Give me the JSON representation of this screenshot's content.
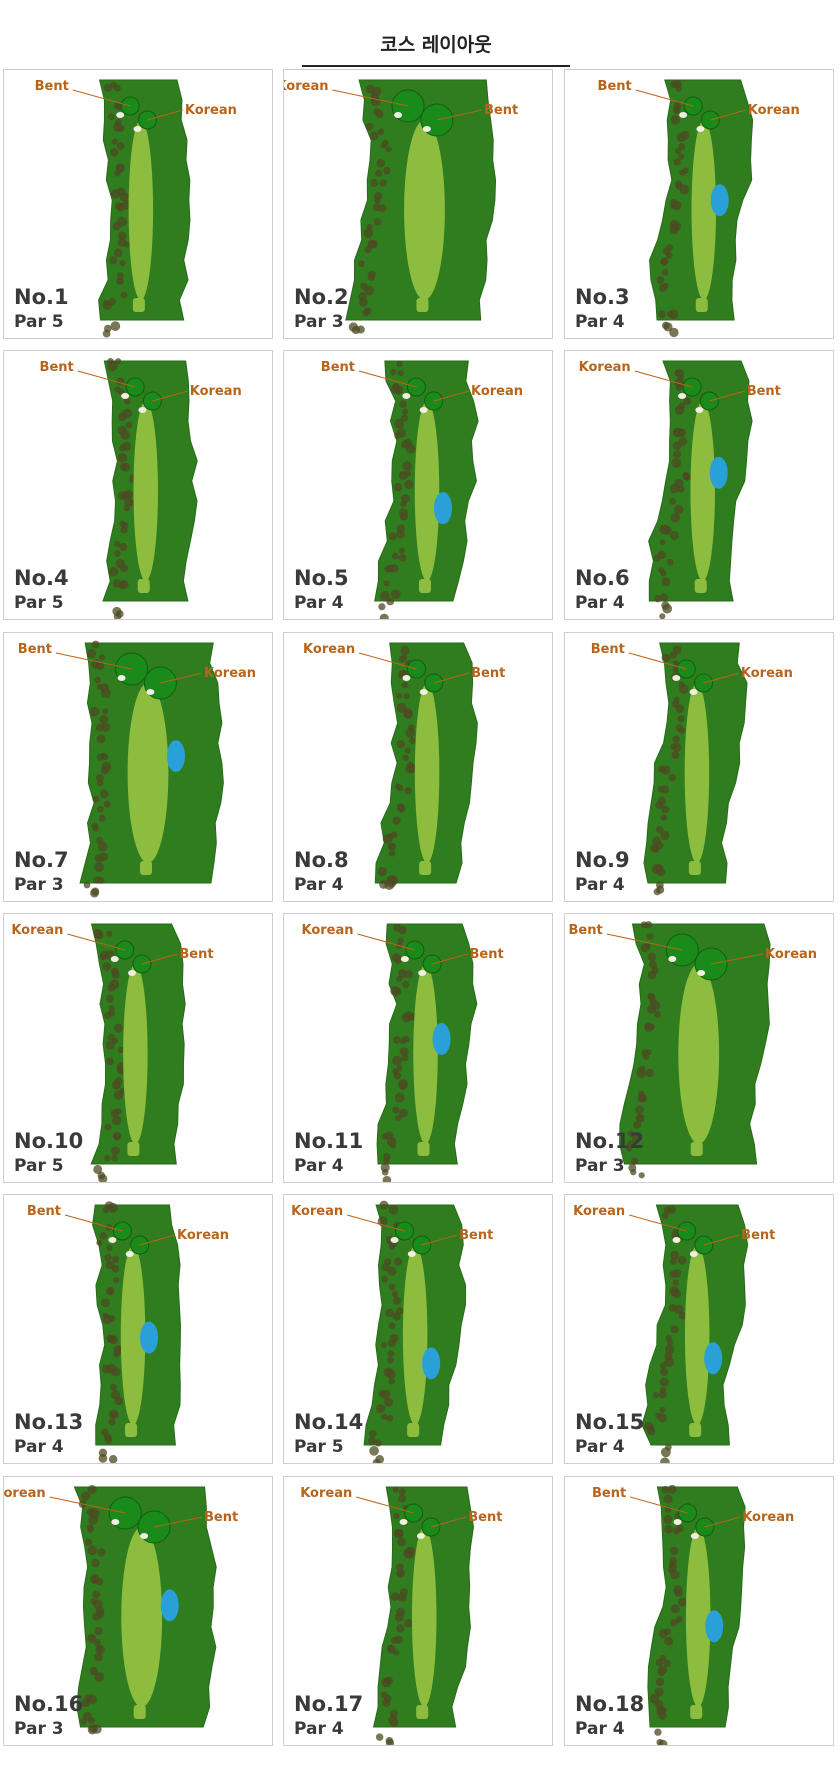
{
  "header": {
    "title": "코스 레이아웃"
  },
  "holes": [
    {
      "number": "No.1",
      "par": "Par 5",
      "left_label": "Bent",
      "right_label": "Korean"
    },
    {
      "number": "No.2",
      "par": "Par 3",
      "left_label": "Korean",
      "right_label": "Bent"
    },
    {
      "number": "No.3",
      "par": "Par 4",
      "left_label": "Bent",
      "right_label": "Korean"
    },
    {
      "number": "No.4",
      "par": "Par 5",
      "left_label": "Bent",
      "right_label": "Korean"
    },
    {
      "number": "No.5",
      "par": "Par 4",
      "left_label": "Bent",
      "right_label": "Korean"
    },
    {
      "number": "No.6",
      "par": "Par 4",
      "left_label": "Korean",
      "right_label": "Bent"
    },
    {
      "number": "No.7",
      "par": "Par 3",
      "left_label": "Bent",
      "right_label": "Korean"
    },
    {
      "number": "No.8",
      "par": "Par 4",
      "left_label": "Korean",
      "right_label": "Bent"
    },
    {
      "number": "No.9",
      "par": "Par 4",
      "left_label": "Bent",
      "right_label": "Korean"
    },
    {
      "number": "No.10",
      "par": "Par 5",
      "left_label": "Korean",
      "right_label": "Bent"
    },
    {
      "number": "No.11",
      "par": "Par 4",
      "left_label": "Korean",
      "right_label": "Bent"
    },
    {
      "number": "No.12",
      "par": "Par 3",
      "left_label": "Bent",
      "right_label": "Korean"
    },
    {
      "number": "No.13",
      "par": "Par 4",
      "left_label": "Bent",
      "right_label": "Korean"
    },
    {
      "number": "No.14",
      "par": "Par 5",
      "left_label": "Korean",
      "right_label": "Bent"
    },
    {
      "number": "No.15",
      "par": "Par 4",
      "left_label": "Korean",
      "right_label": "Bent"
    },
    {
      "number": "No.16",
      "par": "Par 3",
      "left_label": "Korean",
      "right_label": "Bent"
    },
    {
      "number": "No.17",
      "par": "Par 4",
      "left_label": "Korean",
      "right_label": "Bent"
    },
    {
      "number": "No.18",
      "par": "Par 4",
      "left_label": "Bent",
      "right_label": "Korean"
    }
  ]
}
